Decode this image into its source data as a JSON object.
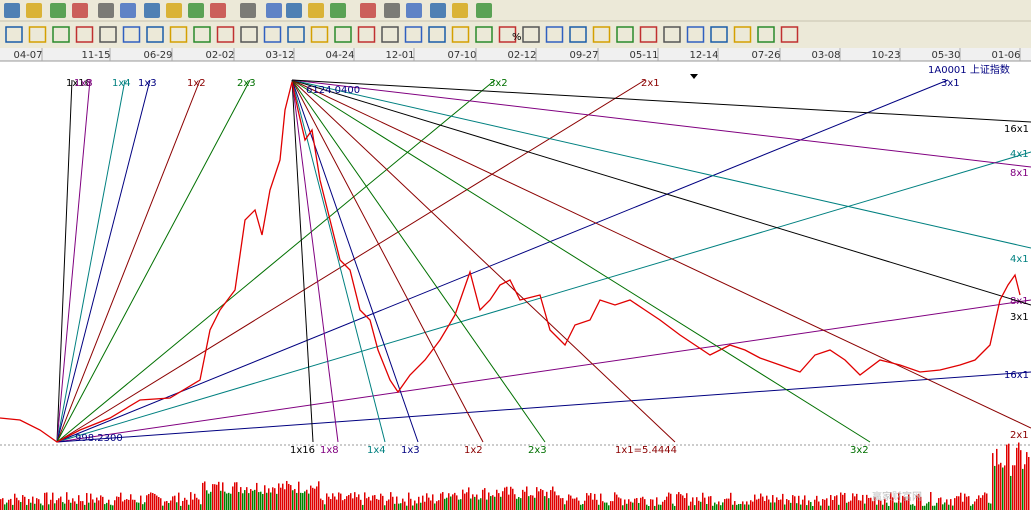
{
  "toolbar": {
    "percent_button": "%"
  },
  "date_axis": [
    "04-07",
    "11-15",
    "06-29",
    "02-02",
    "03-12",
    "04-24",
    "12-01",
    "07-10",
    "02-12",
    "09-27",
    "05-11",
    "12-14",
    "07-26",
    "03-08",
    "10-23",
    "05-30",
    "01-06"
  ],
  "chart": {
    "symbol": "1A0001 上证指数",
    "high_label": "6124.0400",
    "low_label": "998.2300",
    "low_fan_labels": [
      "1x16",
      "1x8",
      "1x4",
      "1x3",
      "1x2",
      "2x3",
      "3x2",
      "2x1",
      "3x1",
      "4x1",
      "8x1",
      "16x1"
    ],
    "high_fan_labels": [
      "1x16",
      "1x8",
      "1x4",
      "1x3",
      "1x2",
      "2x3",
      "1x1=5.4444",
      "3x2",
      "2x1",
      "3x1",
      "4x1",
      "8x1",
      "16x1"
    ]
  },
  "watermark": "赢家财富网"
}
